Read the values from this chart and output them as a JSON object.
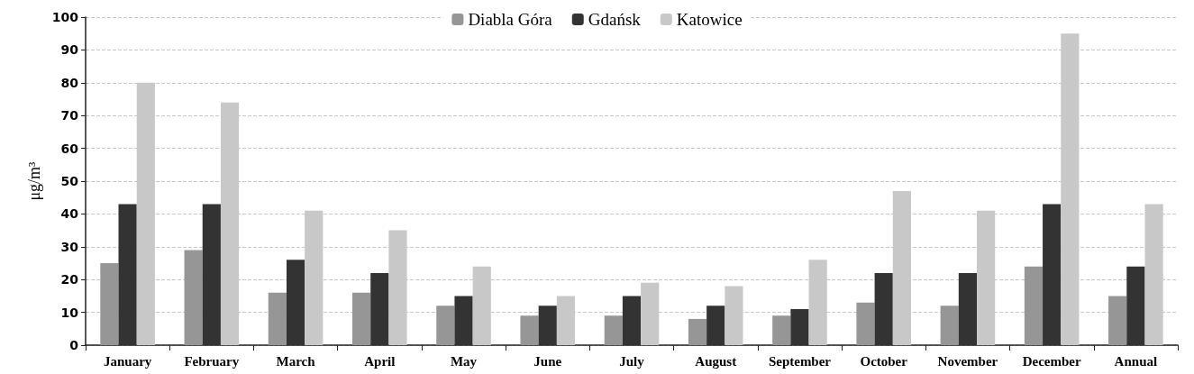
{
  "chart_data": {
    "type": "bar",
    "ylabel": "μg/m³",
    "categories": [
      "January",
      "February",
      "March",
      "April",
      "May",
      "June",
      "July",
      "August",
      "September",
      "October",
      "November",
      "December",
      "Annual"
    ],
    "series": [
      {
        "name": "Diabla Góra",
        "color": "#969696",
        "values": [
          25,
          29,
          16,
          16,
          12,
          9,
          9,
          8,
          9,
          13,
          12,
          24,
          15
        ]
      },
      {
        "name": "Gdańsk",
        "color": "#333333",
        "values": [
          43,
          43,
          26,
          22,
          15,
          12,
          15,
          12,
          11,
          22,
          22,
          43,
          24
        ]
      },
      {
        "name": "Katowice",
        "color": "#c8c8c8",
        "values": [
          80,
          74,
          41,
          35,
          24,
          15,
          19,
          18,
          26,
          47,
          41,
          95,
          43
        ]
      }
    ],
    "ylim": [
      0,
      100
    ],
    "yticks": [
      0,
      10,
      20,
      30,
      40,
      50,
      60,
      70,
      80,
      90,
      100
    ],
    "grid": "y",
    "legend": "top"
  }
}
